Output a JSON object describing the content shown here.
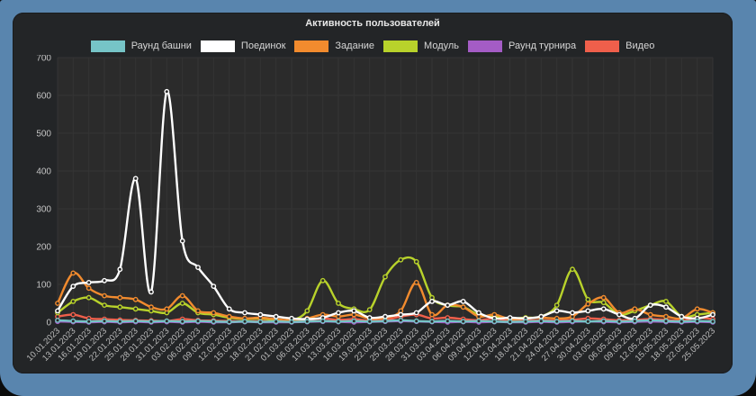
{
  "window": {
    "frame_color": "#5985ae",
    "panel_color": "#232527",
    "plot_bg_color": "#2b2b2b",
    "grid_color": "#343434",
    "axis_label_color": "#bdbdbd"
  },
  "chart_data": {
    "type": "line",
    "title": "Активность пользователей",
    "xlabel": "",
    "ylabel": "",
    "ylim": [
      0,
      700
    ],
    "yticks": [
      0,
      100,
      200,
      300,
      400,
      500,
      600,
      700
    ],
    "grid": true,
    "legend_position": "top",
    "categories": [
      "10.01.2023",
      "13.01.2023",
      "16.01.2023",
      "19.01.2023",
      "22.01.2023",
      "25.01.2023",
      "28.01.2023",
      "31.01.2023",
      "03.02.2023",
      "06.02.2023",
      "09.02.2023",
      "12.02.2023",
      "15.02.2023",
      "18.02.2023",
      "21.02.2023",
      "01.03.2023",
      "06.03.2023",
      "10.03.2023",
      "13.03.2023",
      "16.03.2023",
      "19.03.2023",
      "22.03.2023",
      "25.03.2023",
      "28.03.2023",
      "31.03.2023",
      "03.04.2023",
      "06.04.2023",
      "09.04.2023",
      "12.04.2023",
      "15.04.2023",
      "18.04.2023",
      "21.04.2023",
      "24.04.2023",
      "27.04.2023",
      "30.04.2023",
      "03.05.2023",
      "06.05.2023",
      "09.05.2023",
      "12.05.2023",
      "15.05.2023",
      "18.05.2023",
      "22.05.2023",
      "25.05.2023"
    ],
    "series": [
      {
        "name": "Раунд башни",
        "color": "#76c4c7",
        "values": [
          5,
          3,
          2,
          3,
          2,
          3,
          2,
          3,
          2,
          3,
          2,
          1,
          2,
          1,
          2,
          1,
          2,
          3,
          2,
          3,
          2,
          3,
          5,
          3,
          2,
          3,
          2,
          3,
          2,
          1,
          2,
          3,
          2,
          3,
          2,
          3,
          2,
          3,
          5,
          3,
          2,
          3,
          2
        ]
      },
      {
        "name": "Поединок",
        "color": "#ffffff",
        "values": [
          30,
          95,
          105,
          110,
          140,
          380,
          80,
          610,
          215,
          145,
          95,
          35,
          25,
          20,
          15,
          10,
          8,
          12,
          25,
          30,
          12,
          15,
          20,
          25,
          55,
          45,
          55,
          25,
          10,
          12,
          10,
          15,
          30,
          25,
          30,
          35,
          20,
          10,
          45,
          40,
          15,
          10,
          20
        ]
      },
      {
        "name": "Задание",
        "color": "#f28b2e",
        "values": [
          50,
          130,
          90,
          70,
          65,
          60,
          40,
          35,
          70,
          30,
          25,
          15,
          10,
          12,
          8,
          5,
          10,
          20,
          15,
          20,
          10,
          12,
          30,
          105,
          20,
          45,
          40,
          15,
          20,
          8,
          10,
          12,
          10,
          15,
          48,
          65,
          25,
          35,
          20,
          15,
          10,
          35,
          25
        ]
      },
      {
        "name": "Модуль",
        "color": "#b8d22b",
        "values": [
          25,
          55,
          65,
          45,
          40,
          35,
          30,
          25,
          50,
          25,
          20,
          12,
          8,
          10,
          5,
          5,
          30,
          110,
          50,
          35,
          33,
          120,
          165,
          160,
          65,
          45,
          40,
          20,
          15,
          10,
          12,
          15,
          45,
          140,
          60,
          52,
          20,
          30,
          45,
          55,
          15,
          20,
          25
        ]
      },
      {
        "name": "Раунд турнира",
        "color": "#a45cc5",
        "values": [
          2,
          1,
          0,
          1,
          0,
          1,
          0,
          1,
          0,
          1,
          0,
          0,
          1,
          0,
          0,
          0,
          1,
          2,
          1,
          0,
          1,
          2,
          3,
          2,
          1,
          0,
          1,
          0,
          1,
          0,
          0,
          1,
          0,
          1,
          2,
          1,
          0,
          1,
          2,
          1,
          0,
          1,
          0
        ]
      },
      {
        "name": "Видео",
        "color": "#ef5f4b",
        "values": [
          15,
          20,
          10,
          8,
          6,
          5,
          4,
          3,
          8,
          5,
          4,
          3,
          2,
          3,
          2,
          2,
          5,
          10,
          6,
          8,
          4,
          6,
          15,
          20,
          10,
          12,
          8,
          5,
          10,
          3,
          4,
          5,
          4,
          6,
          10,
          8,
          5,
          6,
          8,
          6,
          4,
          12,
          8
        ]
      }
    ]
  }
}
